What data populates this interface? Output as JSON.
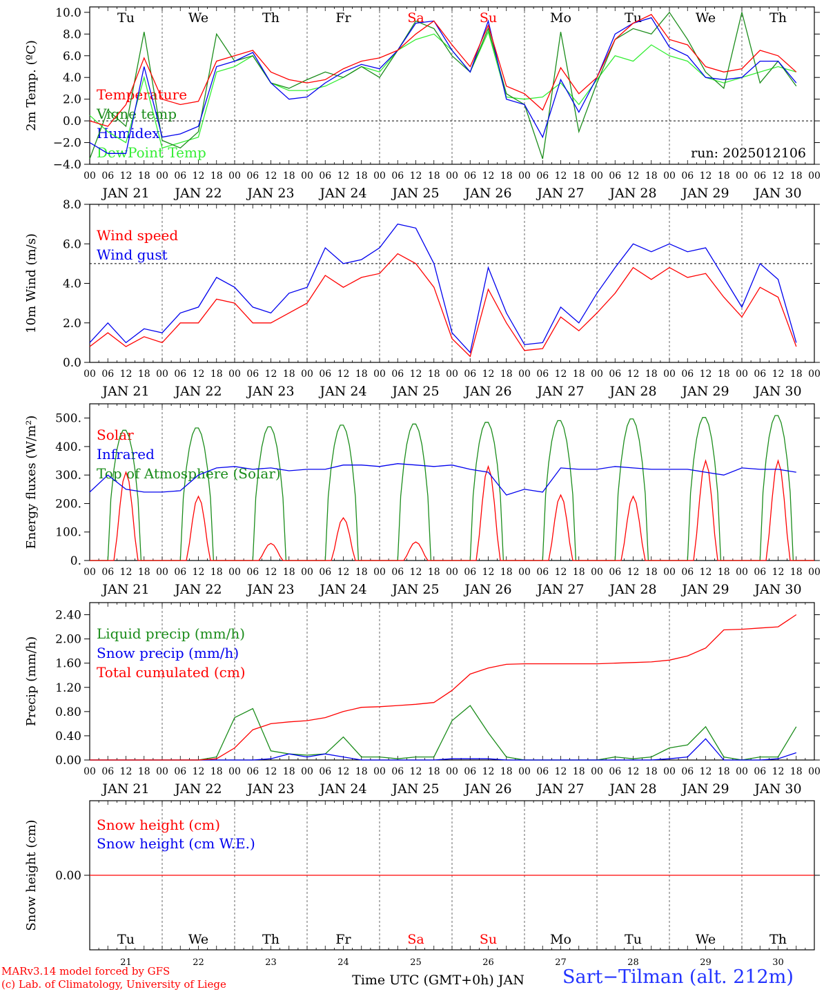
{
  "colors": {
    "red": "#ff0000",
    "green": "#1a8c1a",
    "blue": "#0000ee",
    "lightgreen": "#33ee33",
    "axis": "#000000",
    "grid": "#555555"
  },
  "days": [
    "Tu",
    "We",
    "Th",
    "Fr",
    "Sa",
    "Su",
    "Mo",
    "Tu",
    "We",
    "Th"
  ],
  "weekend_days": [
    4,
    5
  ],
  "date_labels": [
    "JAN 21",
    "JAN 22",
    "JAN 23",
    "JAN 24",
    "JAN 25",
    "JAN 26",
    "JAN 27",
    "JAN 28",
    "JAN 29",
    "JAN 30"
  ],
  "hour_labels": [
    "00",
    "06",
    "12",
    "18"
  ],
  "end_hour_label": "00",
  "bottom_axis": {
    "day_numbers": [
      "21",
      "22",
      "23",
      "24",
      "25",
      "26",
      "27",
      "28",
      "29",
      "30"
    ],
    "xlabel": "Time UTC (GMT+0h) JAN"
  },
  "footer": {
    "credit_line1": "MARv3.14 model forced by GFS",
    "credit_line2": "(c) Lab. of Climatology, University of Liege",
    "station": "Sart−Tilman (alt. 212m)"
  },
  "chart_data": [
    {
      "type": "line",
      "ylabel": "2m Temp. (ºC)",
      "ylim": [
        -4,
        10.5
      ],
      "yticks": [
        -4,
        -2,
        0,
        2,
        4,
        6,
        8,
        10
      ],
      "ytick_labels": [
        "−4.0",
        "−2.0",
        "0.0",
        "2.0",
        "4.0",
        "6.0",
        "8.0",
        "10.0"
      ],
      "zero_line": 0,
      "annotation": "run: 2025012106",
      "x_hours_from_jan21_00": [
        0,
        6,
        12,
        18,
        24,
        30,
        36,
        42,
        48,
        54,
        60,
        66,
        72,
        78,
        84,
        90,
        96,
        102,
        108,
        114,
        120,
        126,
        132,
        138,
        144,
        150,
        156,
        162,
        168,
        174,
        180,
        186,
        192,
        198,
        204,
        210,
        216,
        222,
        228,
        234
      ],
      "series": [
        {
          "name": "Temperature",
          "color": "red",
          "values": [
            0,
            -0.5,
            1.5,
            5.8,
            2.0,
            1.5,
            1.8,
            5.5,
            6.0,
            6.5,
            4.5,
            3.8,
            3.5,
            3.8,
            4.8,
            5.5,
            5.8,
            6.5,
            8.0,
            9.2,
            7.0,
            5.0,
            8.8,
            3.2,
            2.5,
            1.0,
            4.9,
            2.5,
            4.0,
            7.5,
            9.0,
            9.8,
            7.5,
            7.0,
            5.0,
            4.5,
            4.8,
            6.5,
            6.0,
            4.5
          ]
        },
        {
          "name": "Vigne temp",
          "color": "green",
          "values": [
            -3.5,
            1.0,
            -0.5,
            8.2,
            -1.8,
            -2.5,
            -1.0,
            8.0,
            5.5,
            6.0,
            3.5,
            3.0,
            3.8,
            4.5,
            4.0,
            5.0,
            4.0,
            6.5,
            9.2,
            8.5,
            6.0,
            4.5,
            8.5,
            2.5,
            1.5,
            -3.5,
            8.2,
            -1.0,
            3.5,
            7.5,
            8.5,
            8.0,
            10.0,
            7.5,
            4.5,
            3.0,
            10.0,
            3.5,
            5.5,
            3.2
          ]
        },
        {
          "name": "Humidex",
          "color": "blue",
          "values": [
            -2.0,
            -3.0,
            -3.0,
            5.0,
            -1.5,
            -1.2,
            -0.5,
            5.0,
            5.5,
            6.3,
            3.5,
            2.0,
            2.2,
            3.5,
            4.5,
            5.2,
            4.8,
            6.5,
            9.0,
            9.2,
            6.5,
            4.5,
            9.2,
            2.0,
            1.5,
            -1.5,
            3.8,
            0.8,
            4.0,
            8.0,
            9.0,
            9.5,
            6.8,
            6.0,
            4.0,
            3.8,
            4.0,
            5.5,
            5.5,
            3.5
          ]
        },
        {
          "name": "DewPoint Temp",
          "color": "lightgreen",
          "values": [
            0.5,
            -1.0,
            -2.0,
            4.0,
            -2.5,
            -2.0,
            -1.5,
            4.5,
            5.0,
            6.0,
            3.5,
            2.8,
            2.8,
            3.2,
            4.0,
            5.0,
            4.5,
            6.5,
            7.5,
            8.0,
            6.5,
            4.5,
            8.2,
            2.2,
            2.0,
            2.2,
            3.5,
            1.5,
            3.8,
            6.0,
            5.5,
            7.0,
            6.0,
            5.5,
            4.0,
            3.5,
            4.0,
            4.5,
            5.0,
            4.5
          ]
        }
      ]
    },
    {
      "type": "line",
      "ylabel": "10m Wind (m/s)",
      "ylim": [
        0,
        8
      ],
      "yticks": [
        0,
        2,
        4,
        6,
        8
      ],
      "ytick_labels": [
        "0.0",
        "2.0",
        "4.0",
        "6.0",
        "8.0"
      ],
      "ref_line": 5,
      "x_hours_from_jan21_00": [
        0,
        6,
        12,
        18,
        24,
        30,
        36,
        42,
        48,
        54,
        60,
        66,
        72,
        78,
        84,
        90,
        96,
        102,
        108,
        114,
        120,
        126,
        132,
        138,
        144,
        150,
        156,
        162,
        168,
        174,
        180,
        186,
        192,
        198,
        204,
        210,
        216,
        222,
        228,
        234
      ],
      "series": [
        {
          "name": "Wind speed",
          "color": "red",
          "values": [
            0.8,
            1.5,
            0.8,
            1.3,
            1.0,
            2.0,
            2.0,
            3.2,
            3.0,
            2.0,
            2.0,
            2.5,
            3.0,
            4.4,
            3.8,
            4.3,
            4.5,
            5.5,
            5.0,
            3.8,
            1.2,
            0.3,
            3.7,
            2.0,
            0.6,
            0.7,
            2.3,
            1.6,
            2.5,
            3.5,
            4.8,
            4.2,
            4.8,
            4.3,
            4.5,
            3.3,
            2.3,
            3.8,
            3.3,
            0.8
          ]
        },
        {
          "name": "Wind gust",
          "color": "blue",
          "values": [
            1.0,
            2.0,
            1.0,
            1.7,
            1.5,
            2.5,
            2.8,
            4.3,
            3.8,
            2.8,
            2.5,
            3.5,
            3.8,
            5.8,
            5.0,
            5.2,
            5.8,
            7.0,
            6.8,
            5.0,
            1.5,
            0.5,
            4.8,
            2.5,
            0.9,
            1.0,
            2.8,
            2.0,
            3.5,
            4.8,
            6.0,
            5.6,
            6.0,
            5.6,
            5.8,
            4.3,
            2.8,
            5.0,
            4.2,
            1.0
          ]
        }
      ]
    },
    {
      "type": "line",
      "ylabel": "Energy fluxes (W/m²)",
      "ylim": [
        0,
        550
      ],
      "yticks": [
        0,
        100,
        200,
        300,
        400,
        500
      ],
      "ytick_labels": [
        "0.",
        "100.",
        "200.",
        "300.",
        "400.",
        "500."
      ],
      "series": [
        {
          "name": "Solar",
          "color": "red",
          "day_peaks": [
            310,
            225,
            60,
            150,
            65,
            330,
            230,
            225,
            350,
            350
          ]
        },
        {
          "name": "Infrared",
          "color": "blue",
          "values": [
            240,
            300,
            250,
            240,
            240,
            245,
            300,
            325,
            330,
            320,
            325,
            315,
            320,
            320,
            335,
            335,
            330,
            340,
            335,
            330,
            335,
            320,
            310,
            230,
            250,
            240,
            325,
            320,
            320,
            330,
            325,
            320,
            320,
            320,
            310,
            300,
            325,
            320,
            320,
            310
          ]
        },
        {
          "name": "Top of Atmosphere (Solar)",
          "color": "green",
          "day_peaks": [
            460,
            468,
            472,
            478,
            482,
            488,
            494,
            500,
            505,
            512
          ]
        }
      ]
    },
    {
      "type": "line",
      "ylabel": "Precip (mm/h)",
      "ylim": [
        0,
        2.6
      ],
      "yticks": [
        0,
        0.4,
        0.8,
        1.2,
        1.6,
        2.0,
        2.4
      ],
      "ytick_labels": [
        "0.00",
        "0.40",
        "0.80",
        "1.20",
        "1.60",
        "2.00",
        "2.40"
      ],
      "x_hours_from_jan21_00": [
        0,
        6,
        12,
        18,
        24,
        30,
        36,
        42,
        48,
        54,
        60,
        66,
        72,
        78,
        84,
        90,
        96,
        102,
        108,
        114,
        120,
        126,
        132,
        138,
        144,
        150,
        156,
        162,
        168,
        174,
        180,
        186,
        192,
        198,
        204,
        210,
        216,
        222,
        228,
        234
      ],
      "series": [
        {
          "name": "Liquid precip (mm/h)",
          "color": "green",
          "values": [
            0,
            0,
            0,
            0,
            0,
            0,
            0,
            0.05,
            0.7,
            0.85,
            0.15,
            0.1,
            0.08,
            0.1,
            0.38,
            0.05,
            0.05,
            0.02,
            0.05,
            0.05,
            0.65,
            0.9,
            0.45,
            0.05,
            0,
            0,
            0,
            0,
            0,
            0.05,
            0.02,
            0.05,
            0.2,
            0.25,
            0.55,
            0.05,
            0,
            0.05,
            0.05,
            0.55
          ]
        },
        {
          "name": "Snow precip (mm/h)",
          "color": "blue",
          "values": [
            0,
            0,
            0,
            0,
            0,
            0,
            0,
            0,
            0,
            0,
            0.02,
            0.1,
            0.05,
            0.1,
            0.05,
            0,
            0,
            0,
            0,
            0,
            0.02,
            0.02,
            0.02,
            0,
            0,
            0,
            0,
            0,
            0,
            0,
            0,
            0,
            0.02,
            0.05,
            0.35,
            0,
            0,
            0,
            0.02,
            0.12
          ]
        },
        {
          "name": "Total cumulated (cm)",
          "color": "red",
          "values": [
            0,
            0,
            0,
            0,
            0,
            0,
            0,
            0.02,
            0.2,
            0.5,
            0.6,
            0.63,
            0.65,
            0.7,
            0.8,
            0.87,
            0.88,
            0.9,
            0.92,
            0.95,
            1.15,
            1.42,
            1.52,
            1.58,
            1.59,
            1.59,
            1.59,
            1.59,
            1.59,
            1.6,
            1.61,
            1.62,
            1.65,
            1.72,
            1.85,
            2.15,
            2.16,
            2.18,
            2.2,
            2.4
          ]
        }
      ]
    },
    {
      "type": "line",
      "ylabel": "Snow height (cm)",
      "yticks": [
        0
      ],
      "ytick_labels": [
        "0.00"
      ],
      "series": [
        {
          "name": "Snow height (cm)",
          "color": "red",
          "values": [
            0,
            0
          ]
        },
        {
          "name": "Snow height (cm W.E.)",
          "color": "blue",
          "values": [
            0,
            0
          ]
        }
      ]
    }
  ]
}
